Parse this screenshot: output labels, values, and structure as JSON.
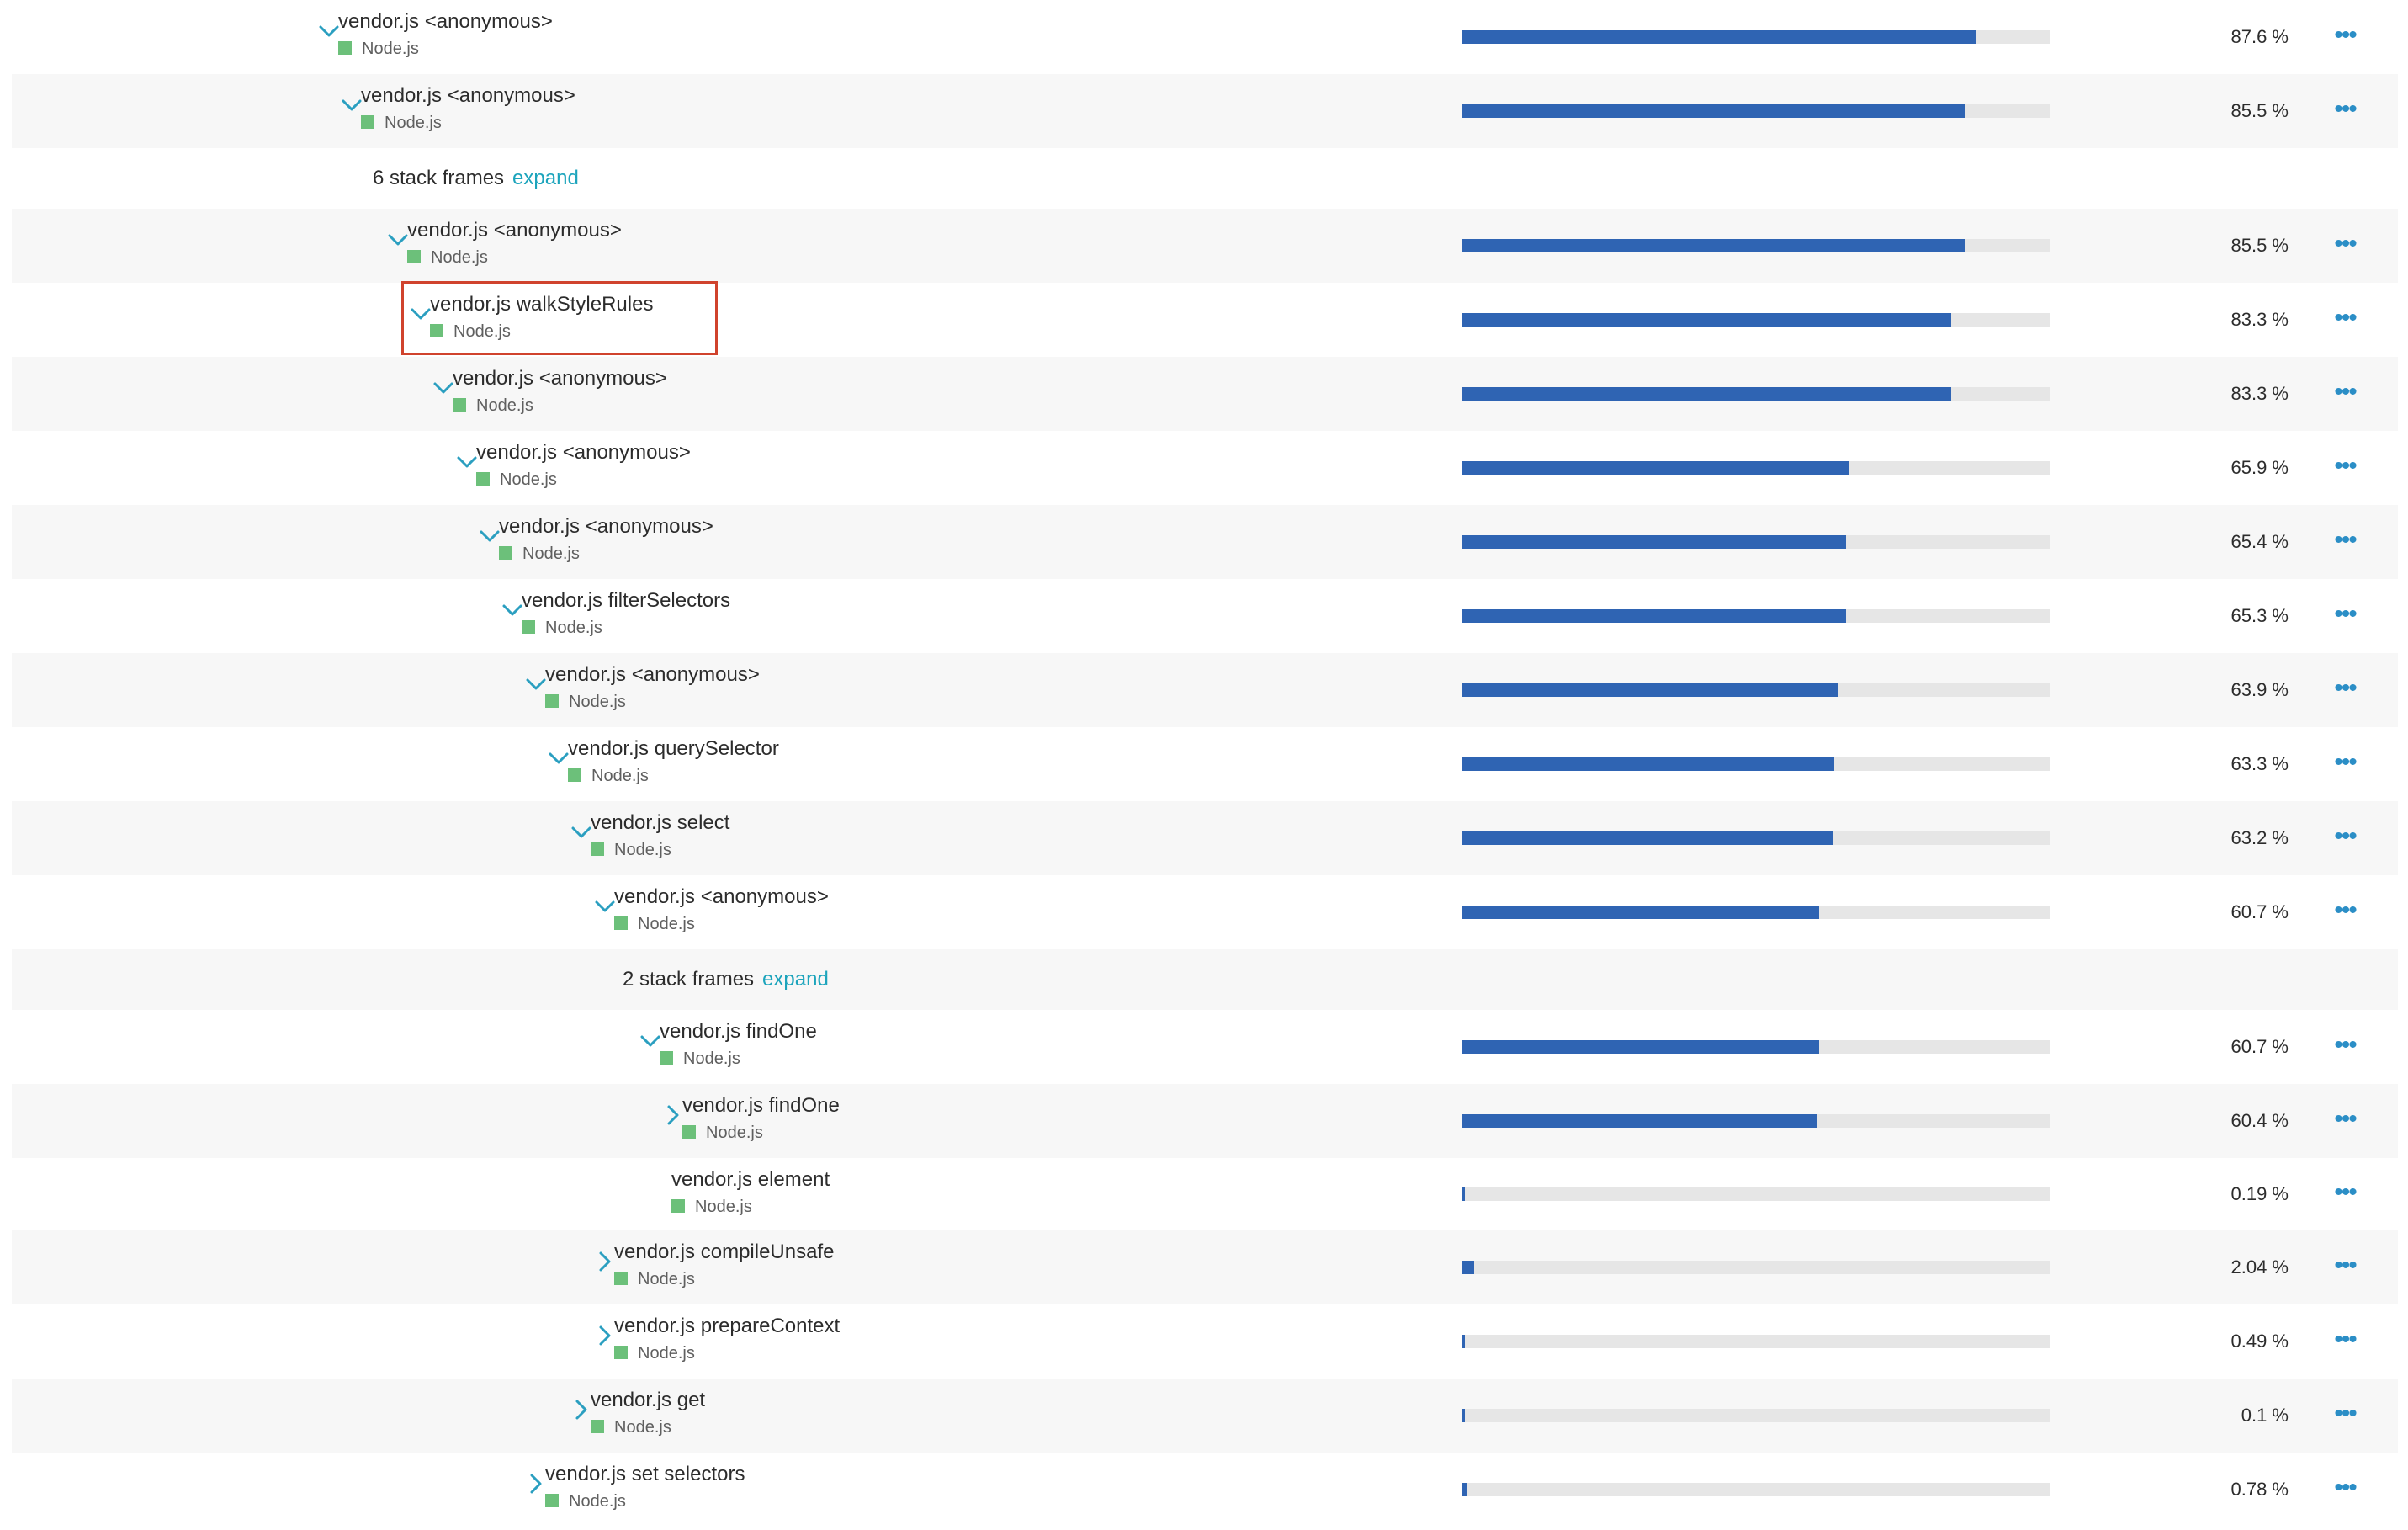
{
  "rows": [
    {
      "type": "frame",
      "name": "vendor.js <anonymous>",
      "tech": "Node.js",
      "percent": "87.6 %",
      "fraction": 0.876,
      "toggle": "expanded"
    },
    {
      "type": "frame",
      "name": "vendor.js <anonymous>",
      "tech": "Node.js",
      "percent": "85.5 %",
      "fraction": 0.855,
      "toggle": "expanded"
    },
    {
      "type": "collapsed",
      "count_text": "6 stack frames",
      "link": "expand"
    },
    {
      "type": "frame",
      "name": "vendor.js <anonymous>",
      "tech": "Node.js",
      "percent": "85.5 %",
      "fraction": 0.855,
      "toggle": "expanded"
    },
    {
      "type": "frame",
      "name": "vendor.js walkStyleRules",
      "tech": "Node.js",
      "percent": "83.3 %",
      "fraction": 0.833,
      "toggle": "expanded",
      "highlighted": true
    },
    {
      "type": "frame",
      "name": "vendor.js <anonymous>",
      "tech": "Node.js",
      "percent": "83.3 %",
      "fraction": 0.833,
      "toggle": "expanded"
    },
    {
      "type": "frame",
      "name": "vendor.js <anonymous>",
      "tech": "Node.js",
      "percent": "65.9 %",
      "fraction": 0.659,
      "toggle": "expanded"
    },
    {
      "type": "frame",
      "name": "vendor.js <anonymous>",
      "tech": "Node.js",
      "percent": "65.4 %",
      "fraction": 0.654,
      "toggle": "expanded"
    },
    {
      "type": "frame",
      "name": "vendor.js filterSelectors",
      "tech": "Node.js",
      "percent": "65.3 %",
      "fraction": 0.653,
      "toggle": "expanded"
    },
    {
      "type": "frame",
      "name": "vendor.js <anonymous>",
      "tech": "Node.js",
      "percent": "63.9 %",
      "fraction": 0.639,
      "toggle": "expanded"
    },
    {
      "type": "frame",
      "name": "vendor.js querySelector",
      "tech": "Node.js",
      "percent": "63.3 %",
      "fraction": 0.633,
      "toggle": "expanded"
    },
    {
      "type": "frame",
      "name": "vendor.js select",
      "tech": "Node.js",
      "percent": "63.2 %",
      "fraction": 0.632,
      "toggle": "expanded"
    },
    {
      "type": "frame",
      "name": "vendor.js <anonymous>",
      "tech": "Node.js",
      "percent": "60.7 %",
      "fraction": 0.607,
      "toggle": "expanded"
    },
    {
      "type": "collapsed",
      "count_text": "2 stack frames",
      "link": "expand"
    },
    {
      "type": "frame",
      "name": "vendor.js findOne",
      "tech": "Node.js",
      "percent": "60.7 %",
      "fraction": 0.607,
      "toggle": "expanded"
    },
    {
      "type": "frame",
      "name": "vendor.js findOne",
      "tech": "Node.js",
      "percent": "60.4 %",
      "fraction": 0.604,
      "toggle": "collapsed"
    },
    {
      "type": "frame",
      "name": "vendor.js element",
      "tech": "Node.js",
      "percent": "0.19 %",
      "fraction": 0.0019,
      "toggle": "none"
    },
    {
      "type": "frame",
      "name": "vendor.js compileUnsafe",
      "tech": "Node.js",
      "percent": "2.04 %",
      "fraction": 0.0204,
      "toggle": "collapsed"
    },
    {
      "type": "frame",
      "name": "vendor.js prepareContext",
      "tech": "Node.js",
      "percent": "0.49 %",
      "fraction": 0.0049,
      "toggle": "collapsed"
    },
    {
      "type": "frame",
      "name": "vendor.js get",
      "tech": "Node.js",
      "percent": "0.1 %",
      "fraction": 0.001,
      "toggle": "collapsed"
    },
    {
      "type": "frame",
      "name": "vendor.js set selectors",
      "tech": "Node.js",
      "percent": "0.78 %",
      "fraction": 0.0078,
      "toggle": "collapsed"
    }
  ],
  "more_icon": "ellipsis-icon",
  "colors": {
    "bar": "#2f64b3",
    "track": "#e6e6e6",
    "tech_square": "#6cc07a",
    "accent": "#2b8ec6",
    "link": "#1ca4bc",
    "highlight": "#d0432d"
  }
}
